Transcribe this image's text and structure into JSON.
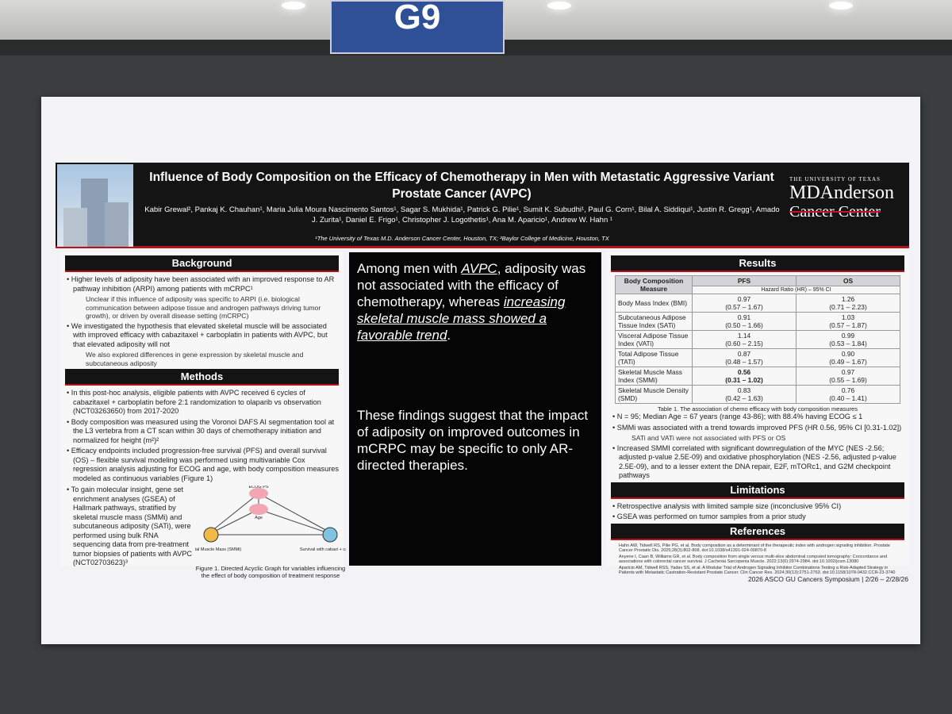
{
  "sign": "G9",
  "header": {
    "title": "Influence of Body Composition on the Efficacy of Chemotherapy in Men with Metastatic Aggressive Variant Prostate Cancer (AVPC)",
    "authors": "Kabir Grewal², Pankaj K. Chauhan¹, Maria Julia Moura Nascimento Santos¹, Sagar S. Mukhida¹, Patrick G. Pilie¹, Sumit K. Subudhi¹, Paul G. Corn¹, Bilal A. Siddiqui¹, Justin R. Gregg¹, Amado J. Zurita¹, Daniel E. Frigo¹, Christopher J. Logothetis¹, Ana M. Aparicio¹, Andrew W. Hahn ¹",
    "affiliations": "¹The University of Texas M.D. Anderson Cancer Center, Houston, TX; ²Baylor College of Medicine, Houston, TX",
    "logo": [
      "THE UNIVERSITY OF TEXAS",
      "MDAnderson",
      "Cancer Center"
    ]
  },
  "background": {
    "heading": "Background",
    "items": [
      {
        "text": "Higher levels of adiposity have been associated with an improved response to AR pathway inhibition (ARPI) among patients with mCRPC¹",
        "sub": [
          "Unclear if this influence of adiposity was specific to ARPI (i.e. biological communication between adipose tissue and androgen pathways driving tumor growth), or driven by overall disease setting (mCRPC)"
        ]
      },
      {
        "text": "We investigated the hypothesis that elevated skeletal muscle will be associated with improved efficacy with cabazitaxel + carboplatin in patients with AVPC, but that elevated adiposity will not",
        "sub": [
          "We also explored differences in gene expression by skeletal muscle and subcutaneous adiposity"
        ]
      }
    ]
  },
  "methods": {
    "heading": "Methods",
    "items": [
      "In this post-hoc analysis, eligible patients with AVPC received 6 cycles of cabazitaxel + carboplatin before 2:1 randomization to olaparib vs observation (NCT03263650) from 2017-2020",
      "Body composition was measured using the Voronoi DAFS AI segmentation tool at the L3 vertebra from a CT scan within 30 days of chemotherapy initiation and normalized for height (m²)²",
      "Efficacy endpoints included progression-free survival (PFS) and overall survival (OS) – flexible survival modeling was performed using multivariable Cox regression analysis adjusting for ECOG and age, with body composition measures modeled as continuous variables (Figure 1)"
    ],
    "gsea": "To gain molecular insight, gene set enrichment analyses (GSEA) of Hallmark pathways, stratified by skeletal muscle mass (SMMi) and subcutaneous adiposity (SATi), were performed using bulk RNA sequencing data from pre-treatment tumor biopsies of patients with AVPC (NCT02703623)³",
    "figure": {
      "nodes": [
        "ECOG PS",
        "Age",
        "Skeletal Muscle Mass (SMMi)",
        "Survival with cabazi + carbo"
      ],
      "caption": "Figure 1. Directed Acyclic Graph for variables influencing the effect of body composition of treatment response"
    }
  },
  "center": {
    "statement": [
      "Among men with ",
      "AVPC",
      ", adiposity was not associated with the efficacy of chemotherapy, whereas ",
      "increasing skeletal muscle mass showed a favorable trend",
      "."
    ],
    "conclusion": "These findings suggest that the impact of adiposity on improved outcomes in mCRPC may be specific to only AR-directed therapies."
  },
  "results": {
    "heading": "Results",
    "table": {
      "header": [
        "Body Composition Measure",
        "PFS",
        "OS"
      ],
      "subheader": "Hazard Ratio (HR) – 95% CI",
      "rows": [
        {
          "measure": "Body Mass Index (BMI)",
          "pfs": [
            "0.97",
            "(0.57 – 1.67)"
          ],
          "os": [
            "1.26",
            "(0.71 – 2.23)"
          ]
        },
        {
          "measure": "Subcutaneous Adipose Tissue Index (SATi)",
          "pfs": [
            "0.91",
            "(0.50 – 1.66)"
          ],
          "os": [
            "1.03",
            "(0.57 – 1.87)"
          ]
        },
        {
          "measure": "Visceral Adipose Tissue Index (VATi)",
          "pfs": [
            "1.14",
            "(0.60 – 2.15)"
          ],
          "os": [
            "0.99",
            "(0.53 – 1.84)"
          ]
        },
        {
          "measure": "Total Adipose Tissue (TATi)",
          "pfs": [
            "0.87",
            "(0.48 – 1.57)"
          ],
          "os": [
            "0.90",
            "(0.49 – 1.67)"
          ]
        },
        {
          "measure": "Skeletal Muscle Mass Index (SMMi)",
          "pfs": [
            "0.56",
            "(0.31 – 1.02)"
          ],
          "os": [
            "0.97",
            "(0.55 – 1.69)"
          ],
          "bold": true
        },
        {
          "measure": "Skeletal Muscle Density (SMD)",
          "pfs": [
            "0.83",
            "(0.42 – 1.63)"
          ],
          "os": [
            "0.76",
            "(0.40 – 1.41)"
          ]
        }
      ],
      "caption": "Table 1. The association of chemo efficacy with body composition measures"
    },
    "items": [
      {
        "text": "N = 95; Median Age = 67 years (range 43-86); with 88.4% having ECOG ≤ 1",
        "sub": []
      },
      {
        "text": "SMMi was associated with a trend towards improved PFS (HR 0.56, 95% CI [0.31-1.02])",
        "sub": [
          "SATi and VATi were not associated with PFS or OS"
        ]
      },
      {
        "text": "Increased SMMI correlated with significant downregulation of the MYC (NES -2.56; adjusted p-value 2.5E-09) and oxidative phosphorylation (NES -2.56, adjusted p-value 2.5E-09), and to a lesser extent the DNA repair, E2F, mTORc1, and G2M checkpoint pathways",
        "sub": []
      }
    ]
  },
  "limitations": {
    "heading": "Limitations",
    "items": [
      "Retrospective analysis with limited sample size (inconclusive 95% CI)",
      "GSEA was performed on tumor samples from a prior study"
    ]
  },
  "references": {
    "heading": "References",
    "items": [
      "Hahn AW, Tidwell RS, Pilie PG, et al. Body composition as a determinant of the therapeutic index with androgen signaling inhibition. Prostate Cancer Prostatic Dis. 2025;28(3):802-808. doi:10.1038/s41391-024-00870-8",
      "Anyene I, Caan B, Williams GR, et al. Body composition from single versus multi-slice abdominal computed tomography: Concordance and associations with colorectal cancer survival. J Cachexia Sarcopenia Muscle. 2022;13(6):2974-2984. doi:10.1002/jcsm.13080",
      "Aparicio AM, Tidwell RSS, Yadav SS, et al. A Modular Trial of Androgen Signaling Inhibitor Combinations Testing a Risk-Adapted Strategy in Patients with Metastatic Castration-Resistant Prostate Cancer. Clin Cancer Res. 2024;30(13):2751-2763. doi:10.1158/1078-0432.CCR-23-3740"
    ]
  },
  "footer": "2026 ASCO GU Cancers Symposium | 2/26 – 2/28/26"
}
